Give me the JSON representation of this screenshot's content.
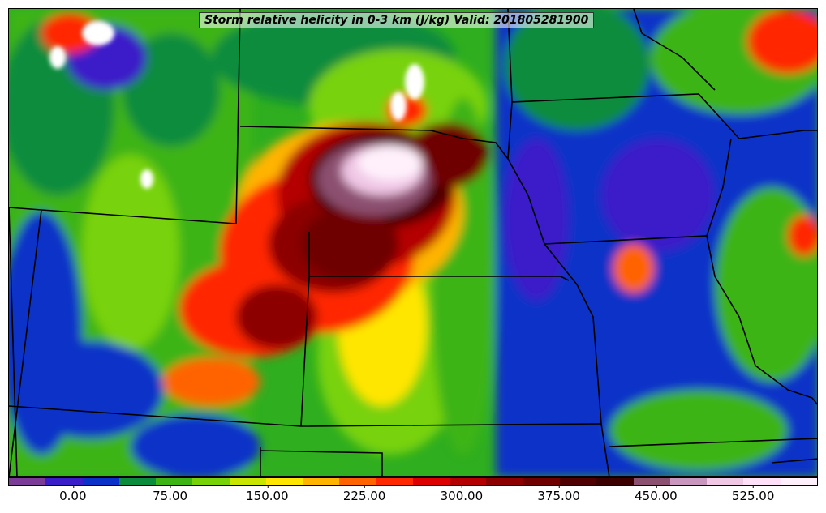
{
  "title": "Storm relative helicity in 0-3 km (J/kg) Valid: 201805281900",
  "colorbar": {
    "colors": [
      "#7a3c96",
      "#3a1ec8",
      "#0a32c8",
      "#0a8c3c",
      "#3cb414",
      "#78d20a",
      "#c8e600",
      "#ffe600",
      "#ffb400",
      "#ff6400",
      "#ff2800",
      "#dc0000",
      "#b40000",
      "#8c0000",
      "#6e0000",
      "#500000",
      "#3c0000",
      "#8c5070",
      "#c896be",
      "#f0c8e6",
      "#ffe0f8",
      "#fff0fc"
    ],
    "tick_labels": [
      "0.00",
      "75.00",
      "150.00",
      "225.00",
      "300.00",
      "375.00",
      "450.00",
      "525.00"
    ],
    "tick_values": [
      0,
      75,
      150,
      225,
      300,
      375,
      450,
      525
    ],
    "min": -50,
    "max": 575
  }
}
